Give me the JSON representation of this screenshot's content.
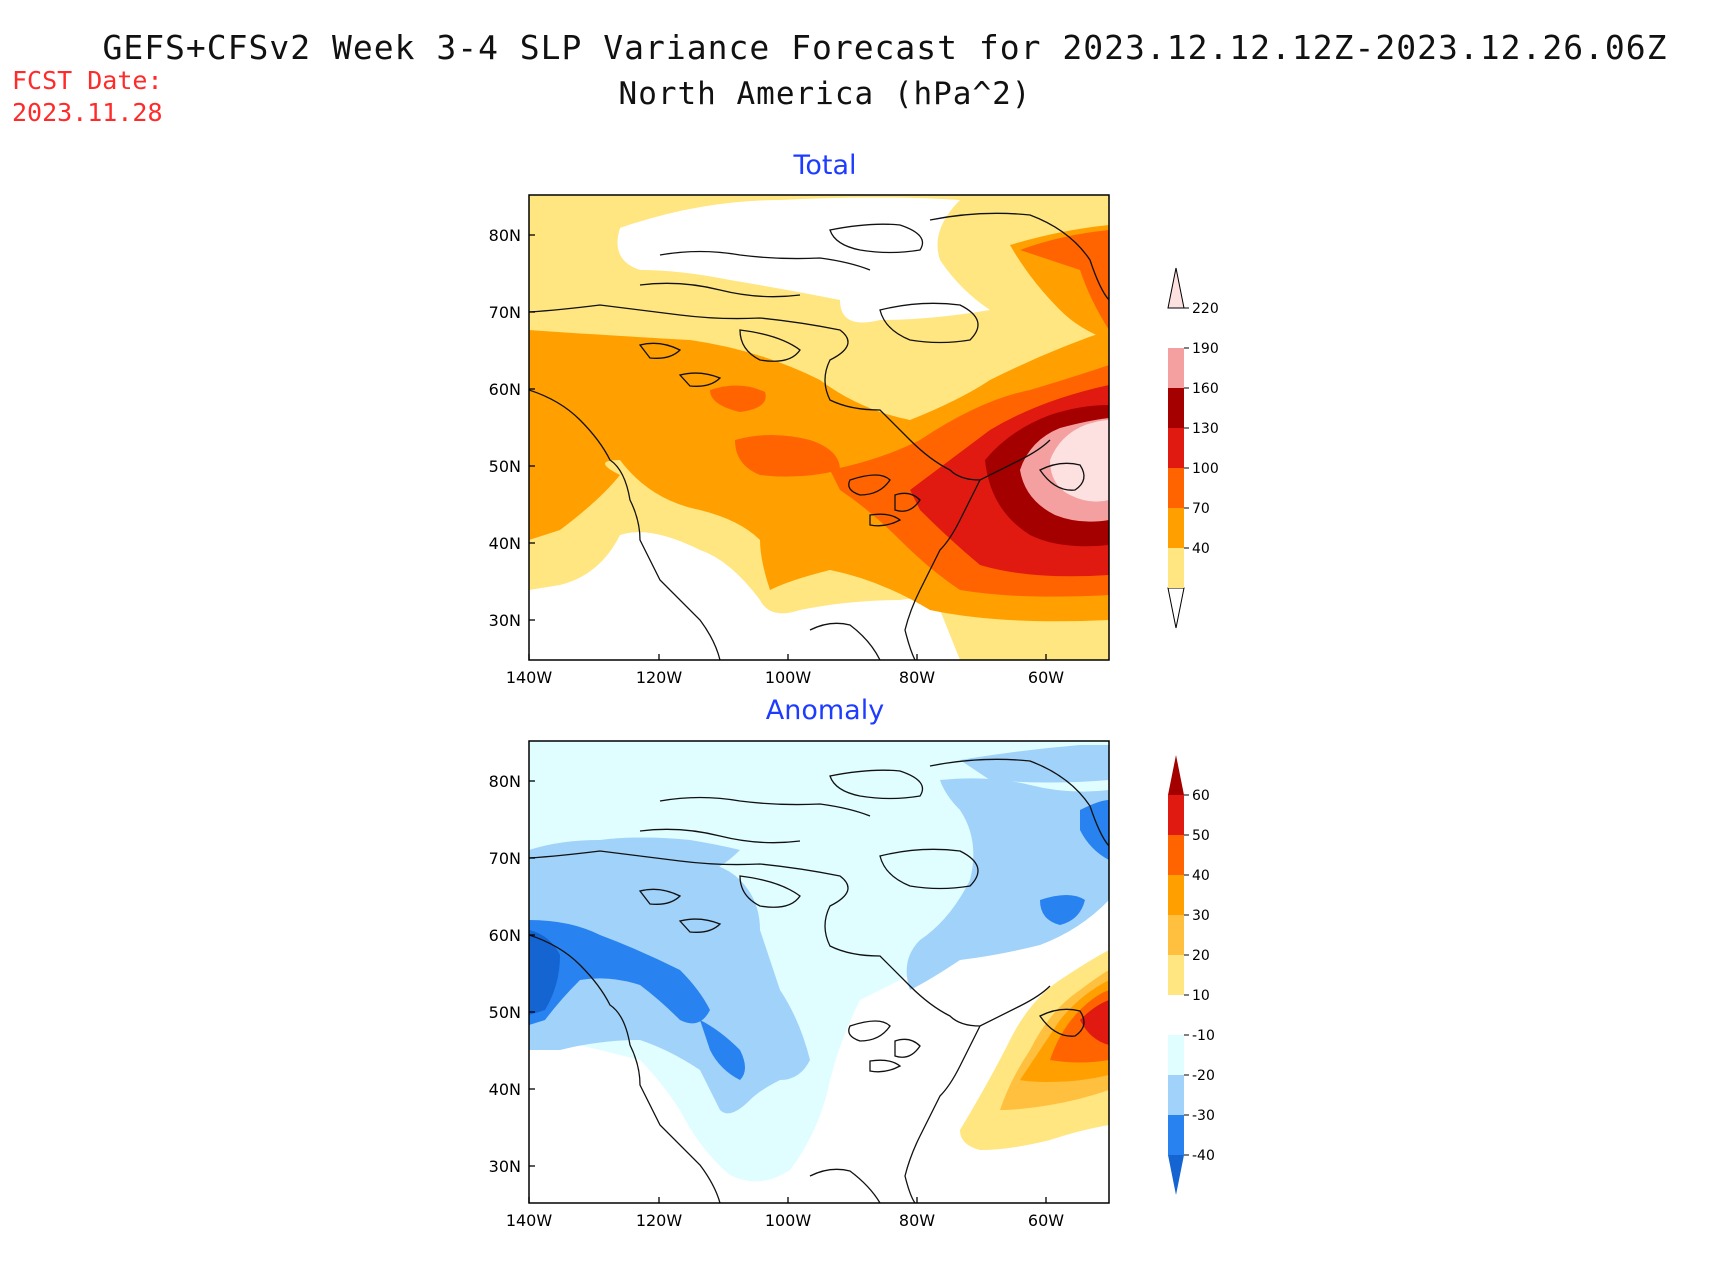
{
  "header": {
    "title_line1": "GEFS+CFSv2 Week 3-4 SLP Variance Forecast for 2023.12.12.12Z-2023.12.26.06Z",
    "title_line2": "North America (hPa^2)",
    "fcst_label": "FCST Date:",
    "fcst_date": "2023.11.28"
  },
  "panels": [
    {
      "title": "Total",
      "lat_labels": [
        "80N",
        "70N",
        "60N",
        "50N",
        "40N",
        "30N"
      ],
      "lon_labels": [
        "140W",
        "120W",
        "100W",
        "80W",
        "60W"
      ],
      "colorbar": {
        "levels": [
          "40",
          "70",
          "100",
          "130",
          "160",
          "190",
          "220"
        ],
        "colors": [
          "#ffe680",
          "#ffa000",
          "#ff6400",
          "#e01a10",
          "#a50000",
          "#f4a0a0",
          "#fde0e0"
        ]
      }
    },
    {
      "title": "Anomaly",
      "lat_labels": [
        "80N",
        "70N",
        "60N",
        "50N",
        "40N",
        "30N"
      ],
      "lon_labels": [
        "140W",
        "120W",
        "100W",
        "80W",
        "60W"
      ],
      "colorbar": {
        "levels": [
          "60",
          "50",
          "40",
          "30",
          "20",
          "10",
          "-10",
          "-20",
          "-30",
          "-40"
        ],
        "colors": [
          "#a50000",
          "#e01a10",
          "#ff6400",
          "#ffa000",
          "#ffc040",
          "#ffe680",
          "#ffffff",
          "#e0fdff",
          "#a0d2fa",
          "#2882f0",
          "#1464d2"
        ]
      }
    }
  ]
}
